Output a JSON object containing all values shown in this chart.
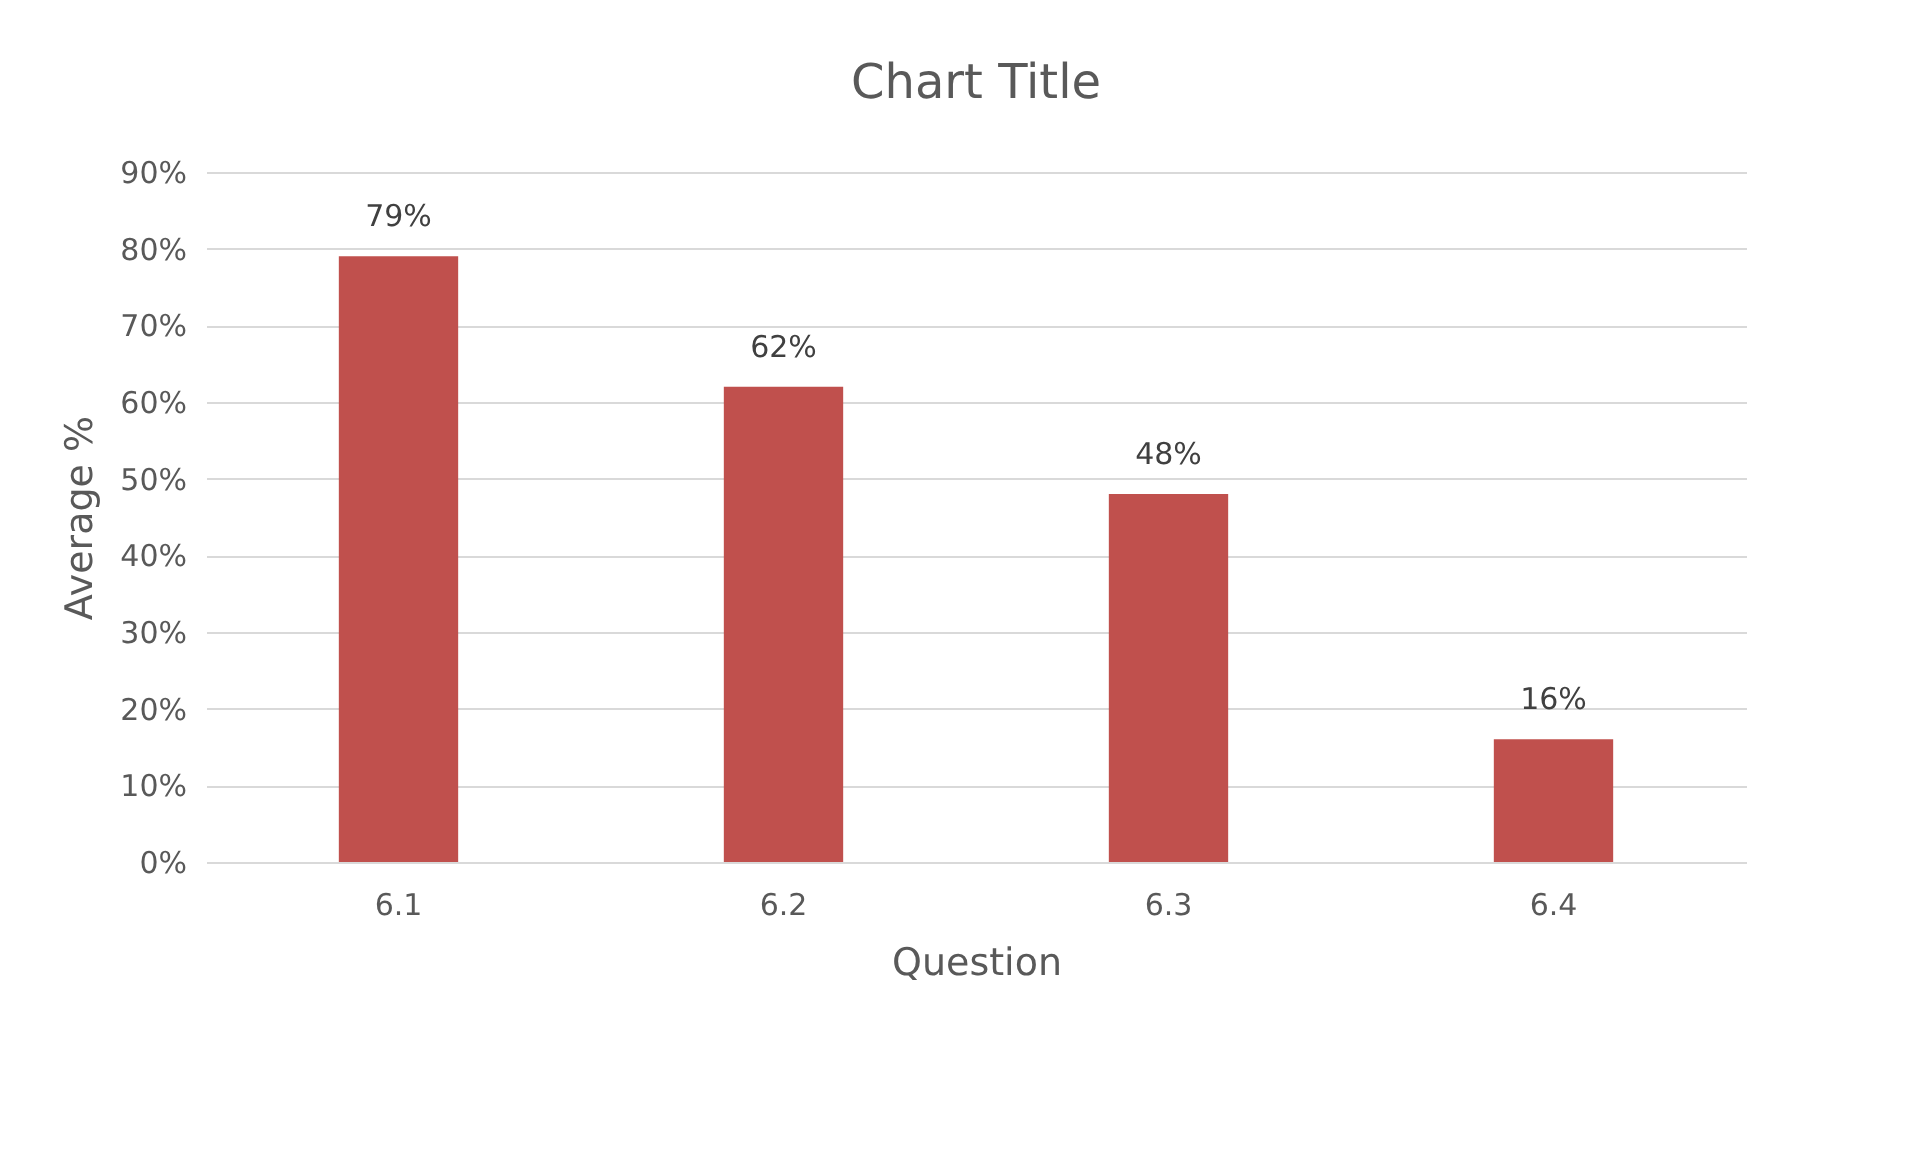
{
  "chart_data": {
    "type": "bar",
    "title": "Chart Title",
    "xlabel": "Question",
    "ylabel": "Average %",
    "categories": [
      "6.1",
      "6.2",
      "6.3",
      "6.4"
    ],
    "values": [
      79,
      62,
      48,
      16
    ],
    "value_labels": [
      "79%",
      "62%",
      "48%",
      "16%"
    ],
    "color": "#c0504d",
    "ylim": [
      0,
      90
    ],
    "yticks": [
      {
        "value": 0,
        "label": "0%"
      },
      {
        "value": 10,
        "label": "10%"
      },
      {
        "value": 20,
        "label": "20%"
      },
      {
        "value": 30,
        "label": "30%"
      },
      {
        "value": 40,
        "label": "40%"
      },
      {
        "value": 50,
        "label": "50%"
      },
      {
        "value": 60,
        "label": "60%"
      },
      {
        "value": 70,
        "label": "70%"
      },
      {
        "value": 80,
        "label": "80%"
      },
      {
        "value": 90,
        "label": "90%"
      }
    ],
    "grid": "y"
  }
}
